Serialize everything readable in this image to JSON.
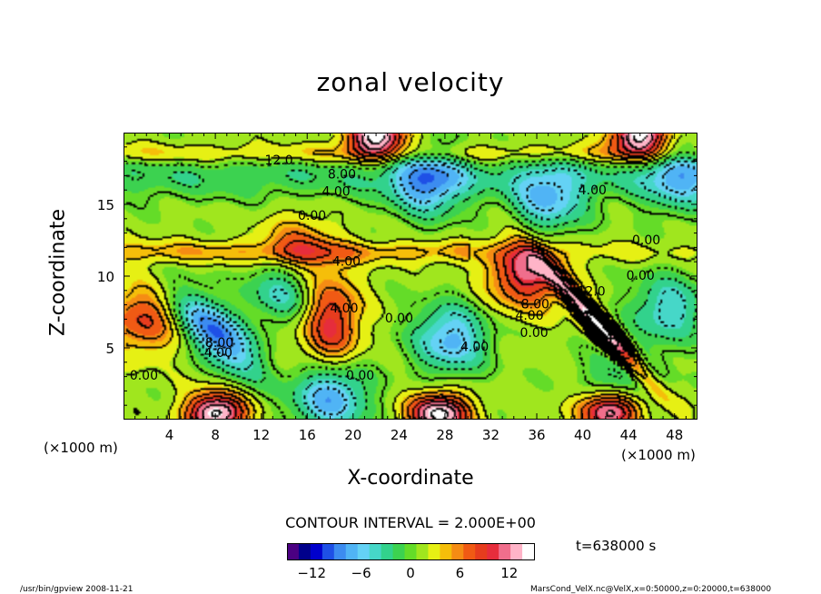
{
  "chart_data": {
    "type": "heatmap",
    "title": "zonal velocity",
    "xlabel": "X-coordinate",
    "ylabel": "Z-coordinate",
    "x_unit": "(×1000 m)",
    "xlim": [
      0,
      50
    ],
    "ylim": [
      0,
      20
    ],
    "x_ticks": [
      4,
      8,
      12,
      16,
      20,
      24,
      28,
      32,
      36,
      40,
      44,
      48
    ],
    "y_ticks": [
      5,
      10,
      15
    ],
    "contour_interval_label": "CONTOUR INTERVAL = 2.000E+00",
    "contour_labels": [
      {
        "text": "12.0",
        "x": 13.5,
        "z": 18.1
      },
      {
        "text": "8.00",
        "x": 19.0,
        "z": 17.1
      },
      {
        "text": "4.00",
        "x": 18.5,
        "z": 15.9
      },
      {
        "text": "0.00",
        "x": 16.4,
        "z": 14.2
      },
      {
        "text": "4.00",
        "x": 40.9,
        "z": 16.0
      },
      {
        "text": "0.00",
        "x": 45.6,
        "z": 12.5
      },
      {
        "text": "0.00",
        "x": 45.1,
        "z": 10.0
      },
      {
        "text": "4.00",
        "x": 19.4,
        "z": 11.0
      },
      {
        "text": "12.0",
        "x": 40.8,
        "z": 8.9
      },
      {
        "text": "8.00",
        "x": 35.9,
        "z": 8.0
      },
      {
        "text": "4.00",
        "x": 35.4,
        "z": 7.2
      },
      {
        "text": "0.00",
        "x": 35.8,
        "z": 6.0
      },
      {
        "text": "4.00",
        "x": 19.2,
        "z": 7.7
      },
      {
        "text": "0.00",
        "x": 24.0,
        "z": 7.0
      },
      {
        "text": "4.00",
        "x": 30.6,
        "z": 5.0
      },
      {
        "text": "8.00",
        "x": 8.3,
        "z": 5.3
      },
      {
        "text": "4.00",
        "x": 8.2,
        "z": 4.6
      },
      {
        "text": "0.00",
        "x": 20.6,
        "z": 3.0
      },
      {
        "text": "0.00",
        "x": 1.7,
        "z": 3.0
      }
    ],
    "features": [
      {
        "kind": "max",
        "x": 18.0,
        "z": 6.8,
        "value": 10
      },
      {
        "kind": "max",
        "x": 41.5,
        "z": 6.5,
        "value": 15
      },
      {
        "kind": "max",
        "x": 35.0,
        "z": 10.2,
        "value": 11
      },
      {
        "kind": "max",
        "x": 8.0,
        "z": 0.4,
        "value": 15
      },
      {
        "kind": "max",
        "x": 27.5,
        "z": 0.4,
        "value": 15
      },
      {
        "kind": "max",
        "x": 42.5,
        "z": 0.6,
        "value": 15
      },
      {
        "kind": "max",
        "x": 22.0,
        "z": 19.8,
        "value": 15
      },
      {
        "kind": "max",
        "x": 45.0,
        "z": 19.8,
        "value": 15
      },
      {
        "kind": "max",
        "x": 1.6,
        "z": 7.0,
        "value": 8
      },
      {
        "kind": "max",
        "x": 15.0,
        "z": 11.6,
        "value": 8
      },
      {
        "kind": "min",
        "x": 8.0,
        "z": 6.0,
        "value": -10
      },
      {
        "kind": "min",
        "x": 28.5,
        "z": 5.6,
        "value": -7
      },
      {
        "kind": "min",
        "x": 18.0,
        "z": 1.6,
        "value": -8
      },
      {
        "kind": "min",
        "x": 26.5,
        "z": 16.6,
        "value": -7
      },
      {
        "kind": "min",
        "x": 37.0,
        "z": 15.2,
        "value": -6
      },
      {
        "kind": "min",
        "x": 14.0,
        "z": 9.4,
        "value": -6
      },
      {
        "kind": "min",
        "x": 47.5,
        "z": 7.7,
        "value": -5
      },
      {
        "kind": "min",
        "x": 43.5,
        "z": 2.5,
        "value": -4
      },
      {
        "kind": "min",
        "x": 48.5,
        "z": 17.0,
        "value": -5
      }
    ],
    "colorbar": {
      "vmin": -15,
      "vmax": 15,
      "ticks": [
        -12,
        -6,
        0,
        6,
        12
      ],
      "colors": [
        "#4b0082",
        "#00008b",
        "#0000cd",
        "#1e50e6",
        "#3c8cf0",
        "#50b4f5",
        "#64d2f5",
        "#46d7c8",
        "#32d28c",
        "#3cd250",
        "#64dc28",
        "#a0e61e",
        "#e6f014",
        "#f5be0a",
        "#f58c14",
        "#f05a14",
        "#e63c1e",
        "#e62d3c",
        "#f06e8c",
        "#ffb4c8",
        "#ffffff"
      ]
    }
  },
  "annotations": {
    "time": "t=638000 s",
    "footer_left": "/usr/bin/gpview  2008-11-21",
    "footer_right": "MarsCond_VelX.nc@VelX,x=0:50000,z=0:20000,t=638000"
  }
}
